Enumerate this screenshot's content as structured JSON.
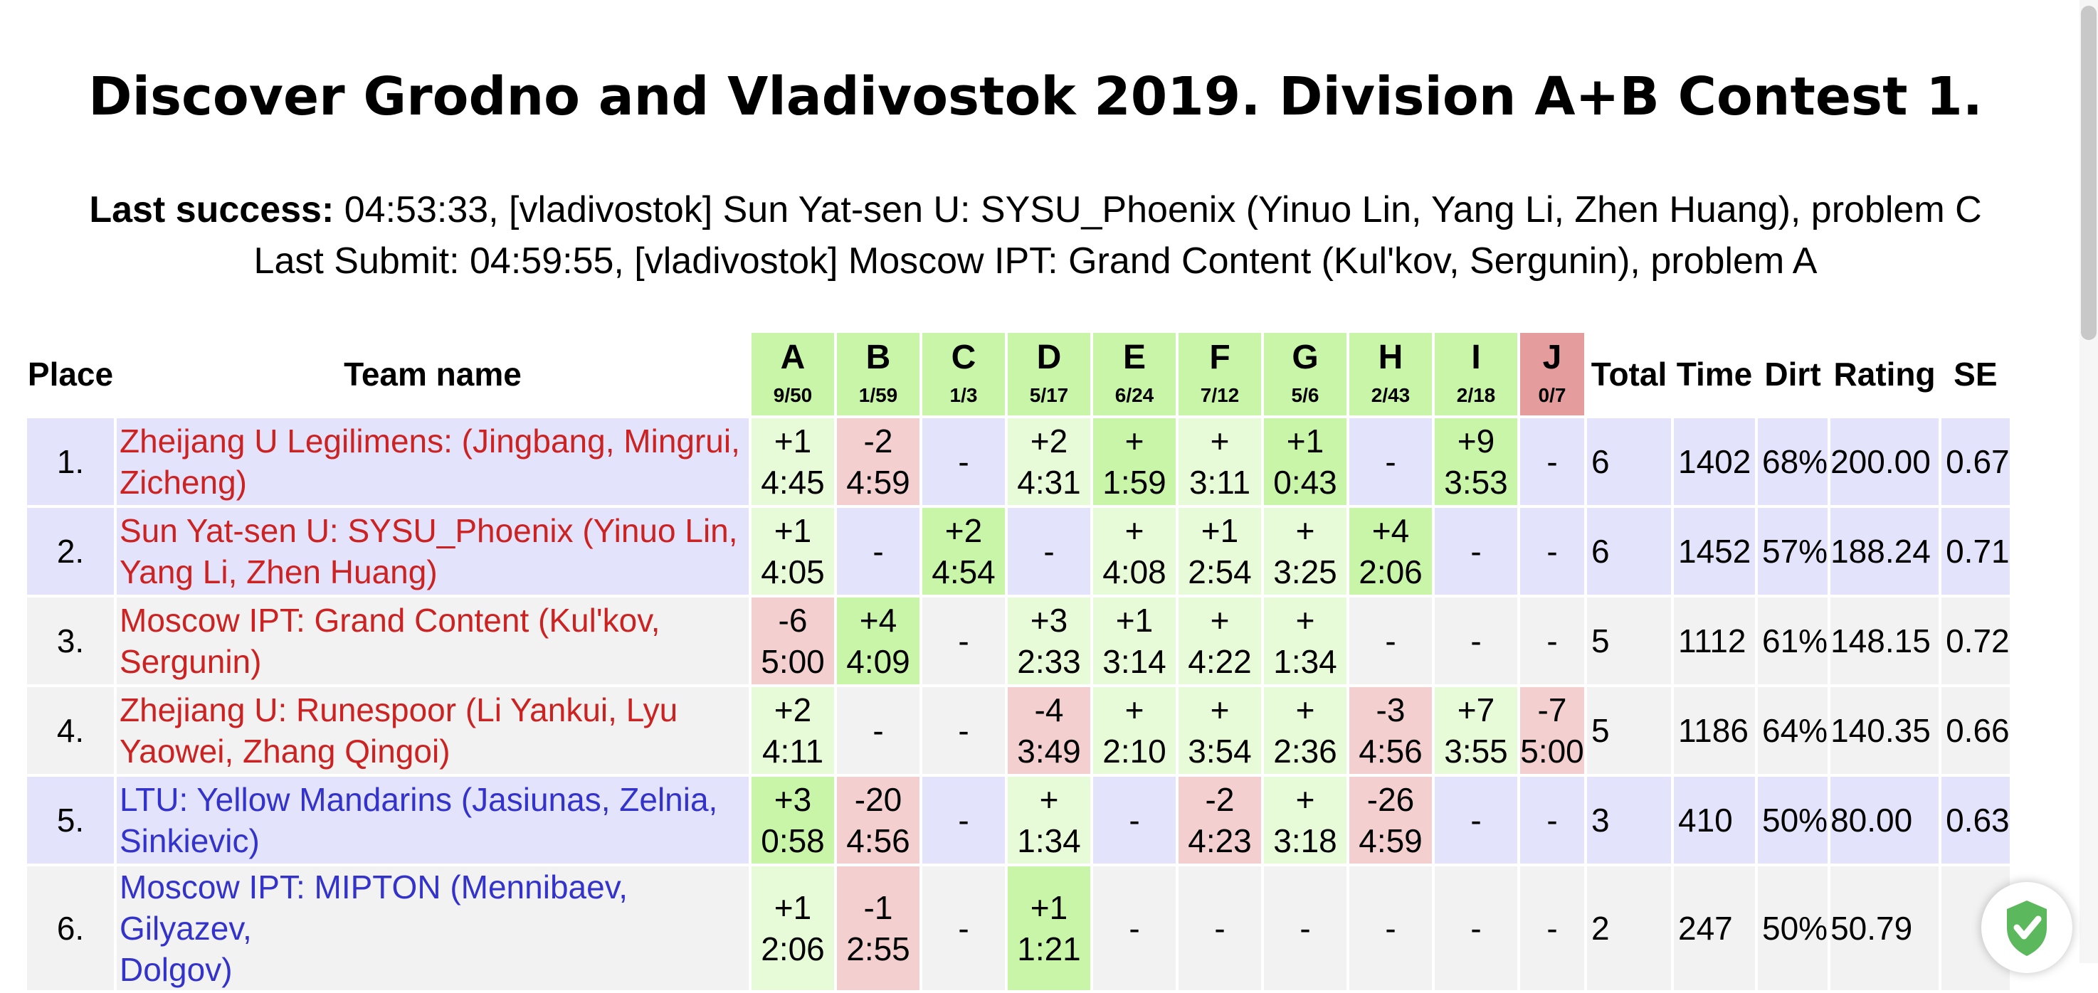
{
  "title": "Discover Grodno and Vladivostok 2019. Division A+B Contest 1.",
  "last_success": {
    "label": "Last success:",
    "text": " 04:53:33, [vladivostok] Sun Yat-sen U: SYSU_Phoenix (Yinuo Lin, Yang Li, Zhen Huang), problem C"
  },
  "last_submit": {
    "text": "Last Submit: 04:59:55, [vladivostok] Moscow IPT: Grand Content (Kul'kov, Sergunin), problem A"
  },
  "headers": {
    "place": "Place",
    "team": "Team name",
    "total": "Total",
    "time": "Time",
    "dirt": "Dirt",
    "rating": "Rating",
    "se": "SE"
  },
  "problems": [
    {
      "letter": "A",
      "stat": "9/50"
    },
    {
      "letter": "B",
      "stat": "1/59"
    },
    {
      "letter": "C",
      "stat": "1/3"
    },
    {
      "letter": "D",
      "stat": "5/17"
    },
    {
      "letter": "E",
      "stat": "6/24"
    },
    {
      "letter": "F",
      "stat": "7/12"
    },
    {
      "letter": "G",
      "stat": "5/6"
    },
    {
      "letter": "H",
      "stat": "2/43"
    },
    {
      "letter": "I",
      "stat": "2/18"
    },
    {
      "letter": "J",
      "stat": "0/7"
    }
  ],
  "rows": [
    {
      "place": "1.",
      "team": [
        "Zheijang U Legilimens: (Jingbang, Mingrui,",
        "Zicheng)"
      ],
      "cells": [
        [
          "+1",
          "4:45"
        ],
        [
          "-2",
          "4:59"
        ],
        [
          "-",
          ""
        ],
        [
          "+2",
          "4:31"
        ],
        [
          "+",
          "1:59"
        ],
        [
          "+",
          "3:11"
        ],
        [
          "+1",
          "0:43"
        ],
        [
          "-",
          ""
        ],
        [
          "+9",
          "3:53"
        ],
        [
          "-",
          ""
        ]
      ],
      "total": "6",
      "time": "1402",
      "dirt": "68%",
      "rating": "200.00",
      "se": "0.67"
    },
    {
      "place": "2.",
      "team": [
        "Sun Yat-sen U: SYSU_Phoenix (Yinuo Lin,",
        "Yang Li, Zhen Huang)"
      ],
      "cells": [
        [
          "+1",
          "4:05"
        ],
        [
          "-",
          ""
        ],
        [
          "+2",
          "4:54"
        ],
        [
          "-",
          ""
        ],
        [
          "+",
          "4:08"
        ],
        [
          "+1",
          "2:54"
        ],
        [
          "+",
          "3:25"
        ],
        [
          "+4",
          "2:06"
        ],
        [
          "-",
          ""
        ],
        [
          "-",
          ""
        ]
      ],
      "total": "6",
      "time": "1452",
      "dirt": "57%",
      "rating": "188.24",
      "se": "0.71"
    },
    {
      "place": "3.",
      "team": [
        "Moscow IPT: Grand Content (Kul'kov,",
        "Sergunin)"
      ],
      "cells": [
        [
          "-6",
          "5:00"
        ],
        [
          "+4",
          "4:09"
        ],
        [
          "-",
          ""
        ],
        [
          "+3",
          "2:33"
        ],
        [
          "+1",
          "3:14"
        ],
        [
          "+",
          "4:22"
        ],
        [
          "+",
          "1:34"
        ],
        [
          "-",
          ""
        ],
        [
          "-",
          ""
        ],
        [
          "-",
          ""
        ]
      ],
      "total": "5",
      "time": "1112",
      "dirt": "61%",
      "rating": "148.15",
      "se": "0.72"
    },
    {
      "place": "4.",
      "team": [
        "Zhejiang U: Runespoor (Li Yankui, Lyu",
        "Yaowei, Zhang Qingoi)"
      ],
      "cells": [
        [
          "+2",
          "4:11"
        ],
        [
          "-",
          ""
        ],
        [
          "-",
          ""
        ],
        [
          "-4",
          "3:49"
        ],
        [
          "+",
          "2:10"
        ],
        [
          "+",
          "3:54"
        ],
        [
          "+",
          "2:36"
        ],
        [
          "-3",
          "4:56"
        ],
        [
          "+7",
          "3:55"
        ],
        [
          "-7",
          "5:00"
        ]
      ],
      "total": "5",
      "time": "1186",
      "dirt": "64%",
      "rating": "140.35",
      "se": "0.66"
    },
    {
      "place": "5.",
      "team": [
        "LTU: Yellow Mandarins (Jasiunas, Zelnia,",
        "Sinkievic)"
      ],
      "cells": [
        [
          "+3",
          "0:58"
        ],
        [
          "-20",
          "4:56"
        ],
        [
          "-",
          ""
        ],
        [
          "+",
          "1:34"
        ],
        [
          "-",
          ""
        ],
        [
          "-2",
          "4:23"
        ],
        [
          "+",
          "3:18"
        ],
        [
          "-26",
          "4:59"
        ],
        [
          "-",
          ""
        ],
        [
          "-",
          ""
        ]
      ],
      "total": "3",
      "time": "410",
      "dirt": "50%",
      "rating": "80.00",
      "se": "0.63"
    },
    {
      "place": "6.",
      "team": [
        "Moscow IPT: MIPTON (Mennibaev, Gilyazev,",
        "Dolgov)"
      ],
      "cells": [
        [
          "+1",
          "2:06"
        ],
        [
          "-1",
          "2:55"
        ],
        [
          "-",
          ""
        ],
        [
          "+1",
          "1:21"
        ],
        [
          "-",
          ""
        ],
        [
          "-",
          ""
        ],
        [
          "-",
          ""
        ],
        [
          "-",
          ""
        ],
        [
          "-",
          ""
        ],
        [
          "-",
          ""
        ]
      ],
      "total": "2",
      "time": "247",
      "dirt": "50%",
      "rating": "50.79",
      "se": ""
    }
  ],
  "colors": {
    "accepted_first": "#c8f5a8",
    "accepted": "#e8fbd8",
    "rejected": "#f4cfcf",
    "row_lavender": "#e3e3fb",
    "row_gray": "#f2f2f2",
    "team_red": "#cc2222",
    "team_blue": "#3333cc",
    "shield_green": "#5cb85c"
  },
  "icons": {
    "shield": "shield-check-icon"
  }
}
